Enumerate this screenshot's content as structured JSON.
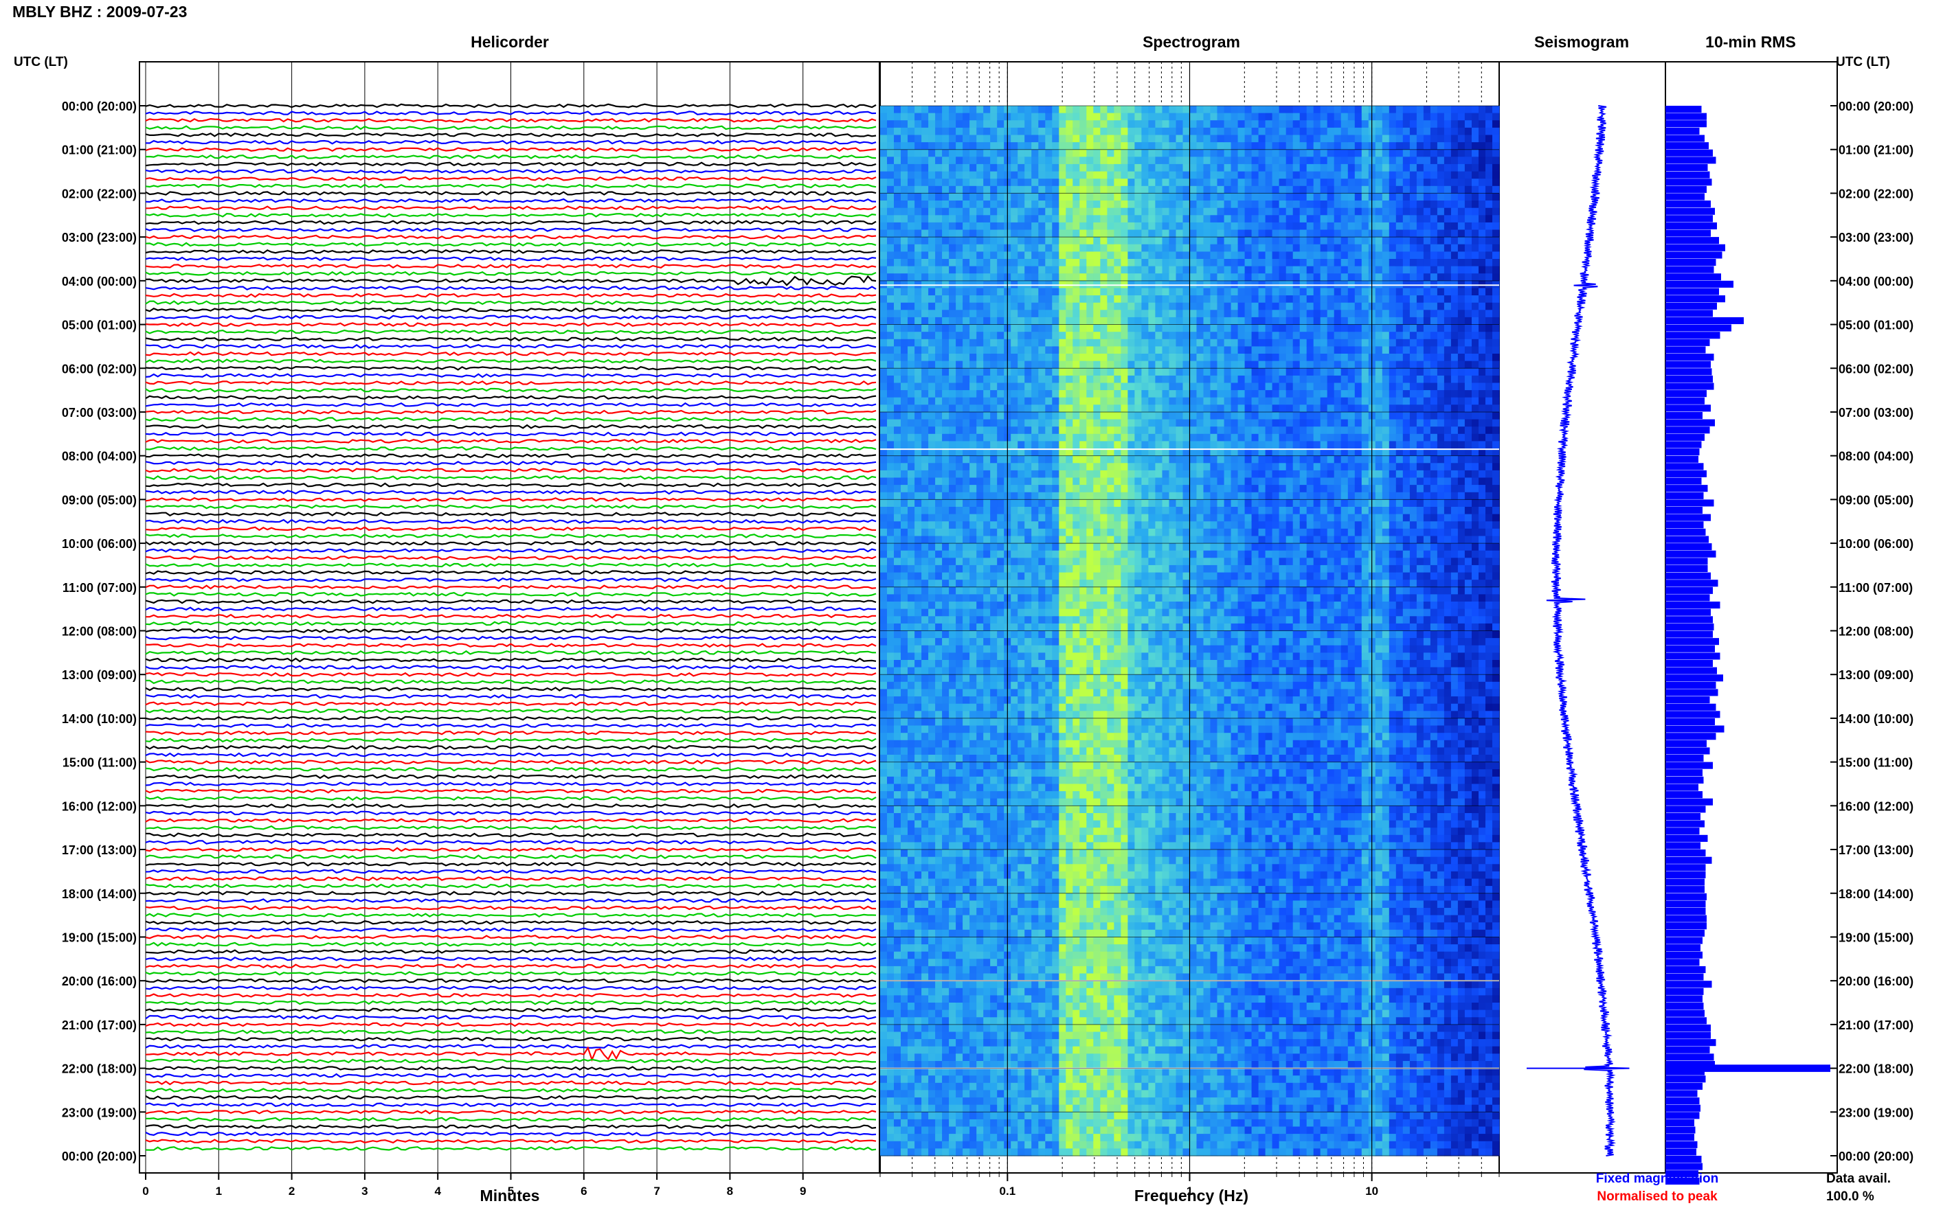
{
  "header": {
    "title": "MBLY BHZ : 2009-07-23"
  },
  "panels": {
    "helicorder": "Helicorder",
    "spectrogram": "Spectrogram",
    "seismogram": "Seismogram",
    "rms": "10-min RMS"
  },
  "utc_label_left": "UTC (LT)",
  "utc_label_right": "UTC (LT)",
  "notes": {
    "fixed": "Fixed magnification",
    "normalised": "Normalised to peak",
    "data_avail": "Data avail.",
    "data_avail_value": "100.0 %"
  },
  "colors": {
    "trace_cycle": [
      "#000000",
      "#0000ff",
      "#ff0000",
      "#00cc00"
    ],
    "spectrogram_low": "#000080",
    "spectrogram_mid": "#1060ff",
    "spectrogram_high": "#b8ff40",
    "seismogram": "#0000ff",
    "rms_bars": "#0000ff",
    "fixed_note": "#0000ff",
    "normalised_note": "#ff0000"
  },
  "chart_data": [
    {
      "type": "line",
      "name": "Helicorder",
      "xlabel": "Minutes",
      "x_ticks": [
        "0",
        "1",
        "2",
        "3",
        "4",
        "5",
        "6",
        "7",
        "8",
        "9"
      ],
      "xlim": [
        0,
        10
      ],
      "traces_per_hour": 6,
      "hours": 24,
      "time_labels": [
        "00:00 (20:00)",
        "01:00 (21:00)",
        "02:00 (22:00)",
        "03:00 (23:00)",
        "04:00 (00:00)",
        "05:00 (01:00)",
        "06:00 (02:00)",
        "07:00 (03:00)",
        "08:00 (04:00)",
        "09:00 (05:00)",
        "10:00 (06:00)",
        "11:00 (07:00)",
        "12:00 (08:00)",
        "13:00 (09:00)",
        "14:00 (10:00)",
        "15:00 (11:00)",
        "16:00 (12:00)",
        "17:00 (13:00)",
        "18:00 (14:00)",
        "19:00 (15:00)",
        "20:00 (16:00)",
        "21:00 (17:00)",
        "22:00 (18:00)",
        "23:00 (19:00)",
        "00:00 (20:00)"
      ],
      "events": [
        {
          "hour": 4.0,
          "minute_start": 8.1,
          "minute_end": 10.0,
          "amp": 3
        },
        {
          "hour": 21.67,
          "minute_start": 6.0,
          "minute_end": 6.7,
          "amp": 4
        }
      ]
    },
    {
      "type": "heatmap",
      "name": "Spectrogram",
      "xlabel": "Frequency (Hz)",
      "x_scale": "log",
      "xlim": [
        0.02,
        50
      ],
      "x_ticks": [
        "0.1",
        "1",
        "10"
      ],
      "peak_band_hz": [
        0.2,
        0.4
      ],
      "gaps_hour": [
        4.1,
        7.85,
        20.0,
        22.0
      ]
    },
    {
      "type": "line",
      "name": "Seismogram",
      "spikes_hour": [
        4.1,
        11.3,
        22.0
      ]
    },
    {
      "type": "bar",
      "name": "10-min RMS",
      "values": [
        3.5,
        4.0,
        4.0,
        3.3,
        3.8,
        4.2,
        4.6,
        4.9,
        4.1,
        4.3,
        4.5,
        4.0,
        3.8,
        4.4,
        4.8,
        4.6,
        5.0,
        4.4,
        5.2,
        5.8,
        5.5,
        4.9,
        4.7,
        5.4,
        6.6,
        5.2,
        5.8,
        5.0,
        4.6,
        7.6,
        6.4,
        5.3,
        4.3,
        3.9,
        4.7,
        4.4,
        4.5,
        4.6,
        4.7,
        4.0,
        3.8,
        4.4,
        3.6,
        4.8,
        4.3,
        3.8,
        3.5,
        3.3,
        3.2,
        3.7,
        4.0,
        3.5,
        4.1,
        3.7,
        4.7,
        3.6,
        4.4,
        3.7,
        3.9,
        4.2,
        4.5,
        4.9,
        4.1,
        4.1,
        4.4,
        5.1,
        4.6,
        4.3,
        5.3,
        4.4,
        4.6,
        4.7,
        4.6,
        5.2,
        4.8,
        5.3,
        4.6,
        5.0,
        5.6,
        4.9,
        5.1,
        4.3,
        4.9,
        5.3,
        4.8,
        5.7,
        4.9,
        4.0,
        4.3,
        3.7,
        4.6,
        3.6,
        3.7,
        3.2,
        3.6,
        4.6,
        3.9,
        3.4,
        3.8,
        3.3,
        4.1,
        3.4,
        3.9,
        4.5,
        3.9,
        3.9,
        3.8,
        3.8,
        4.0,
        3.9,
        3.9,
        4.0,
        4.0,
        3.8,
        3.6,
        3.4,
        3.6,
        3.3,
        3.9,
        3.7,
        4.5,
        3.7,
        3.6,
        3.7,
        3.8,
        4.0,
        4.4,
        4.4,
        4.9,
        4.3,
        4.7,
        4.8,
        3.8,
        3.9,
        3.6,
        3.1,
        3.3,
        3.4,
        3.3,
        2.8,
        2.9,
        2.8,
        3.1,
        3.0,
        3.5,
        3.6,
        3.2,
        3.3
      ],
      "spike": {
        "hour": 22.0,
        "value": 16
      }
    }
  ]
}
